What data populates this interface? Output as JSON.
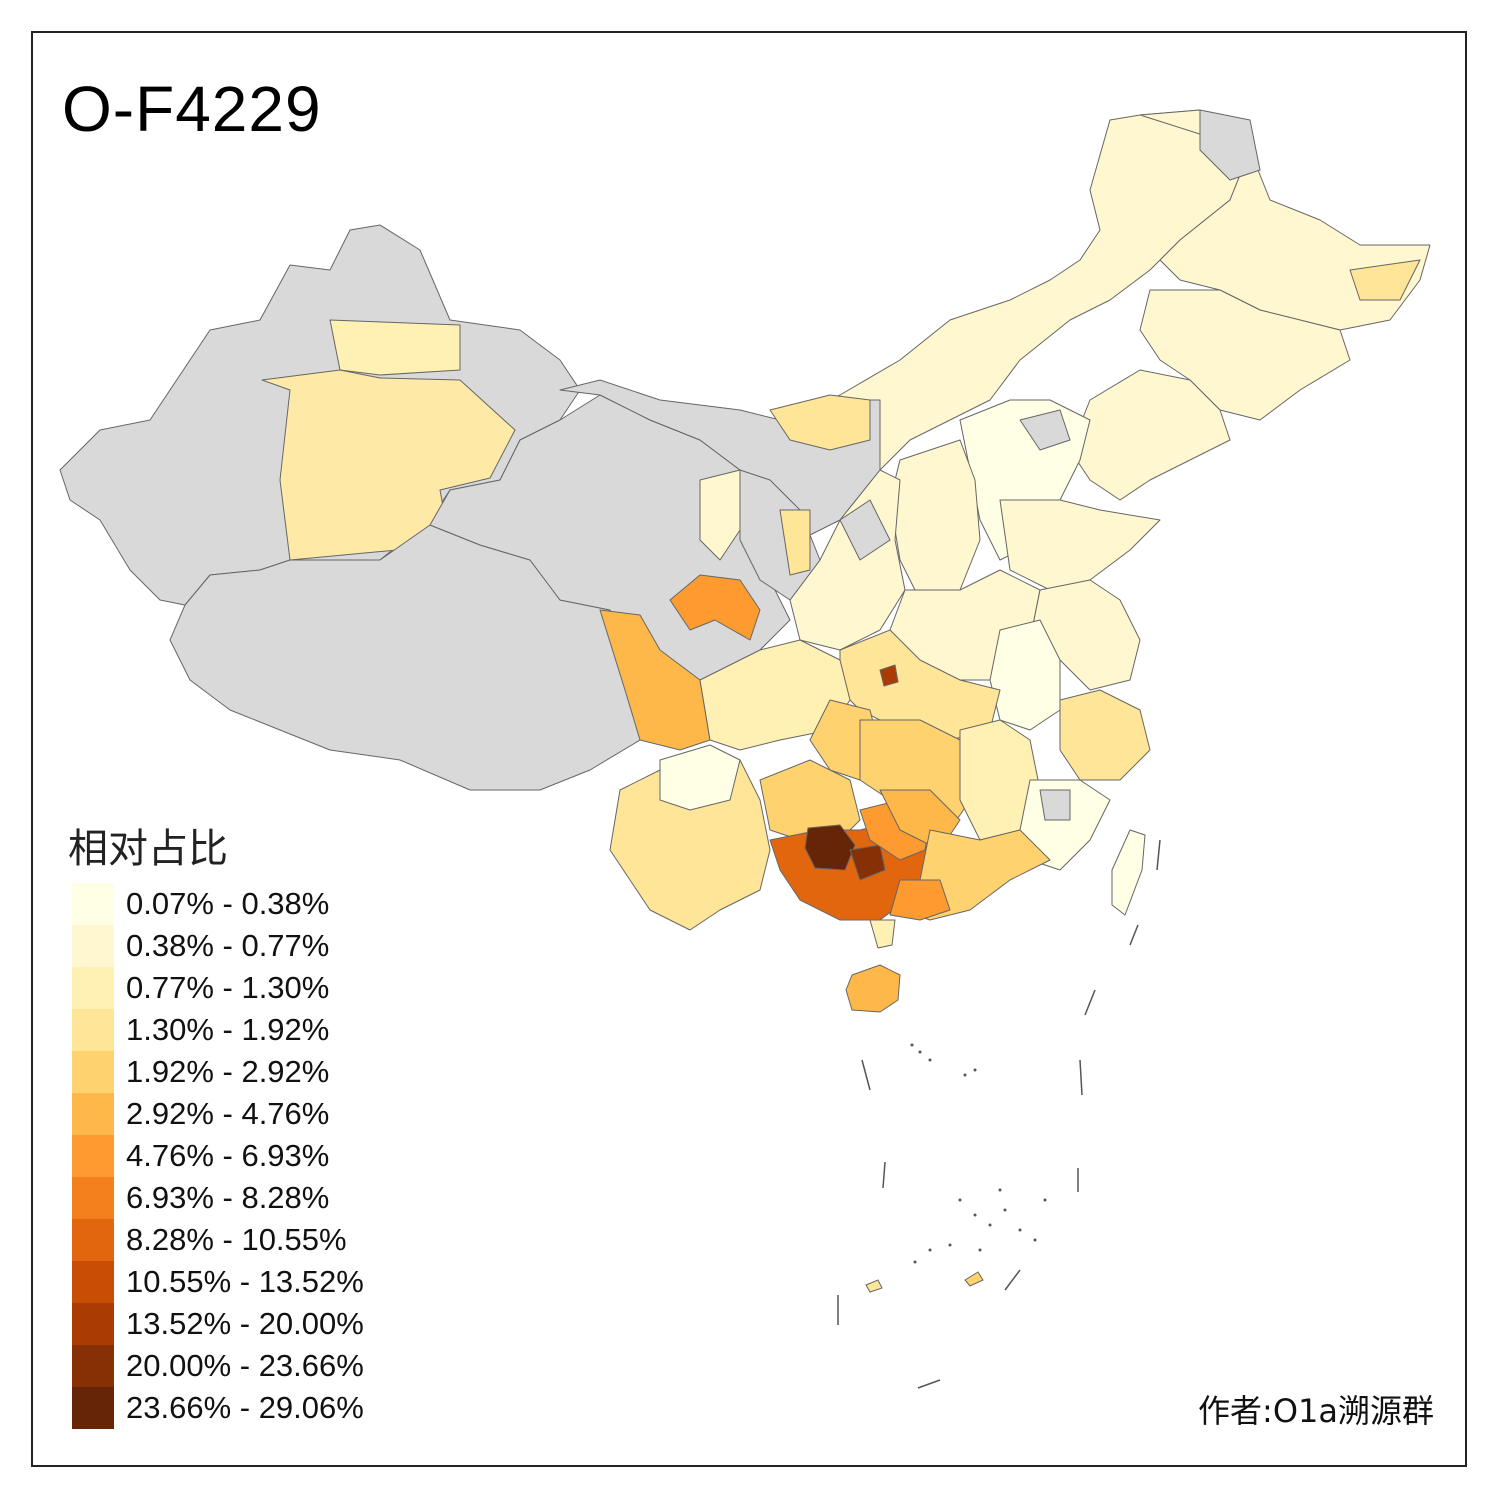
{
  "title": "O-F4229",
  "legend": {
    "title": "相对占比",
    "items": [
      {
        "label": "0.07% - 0.38%",
        "color": "#ffffe5"
      },
      {
        "label": "0.38% - 0.77%",
        "color": "#fff7cf"
      },
      {
        "label": "0.77% - 1.30%",
        "color": "#fff0b4"
      },
      {
        "label": "1.30% - 1.92%",
        "color": "#fee597"
      },
      {
        "label": "1.92% - 2.92%",
        "color": "#fed26f"
      },
      {
        "label": "2.92% - 4.76%",
        "color": "#feb849"
      },
      {
        "label": "4.76% - 6.93%",
        "color": "#fd9b30"
      },
      {
        "label": "6.93% - 8.28%",
        "color": "#f3801d"
      },
      {
        "label": "8.28% - 10.55%",
        "color": "#e2660e"
      },
      {
        "label": "10.55% - 13.52%",
        "color": "#c94e05"
      },
      {
        "label": "13.52% - 20.00%",
        "color": "#aa3c03"
      },
      {
        "label": "20.00% - 23.66%",
        "color": "#883005"
      },
      {
        "label": "23.66% - 29.06%",
        "color": "#662506"
      }
    ]
  },
  "author": "作者:O1a溯源群",
  "colors": {
    "no_data": "#d9d9d9",
    "border": "#555555",
    "frame": "#222222"
  }
}
